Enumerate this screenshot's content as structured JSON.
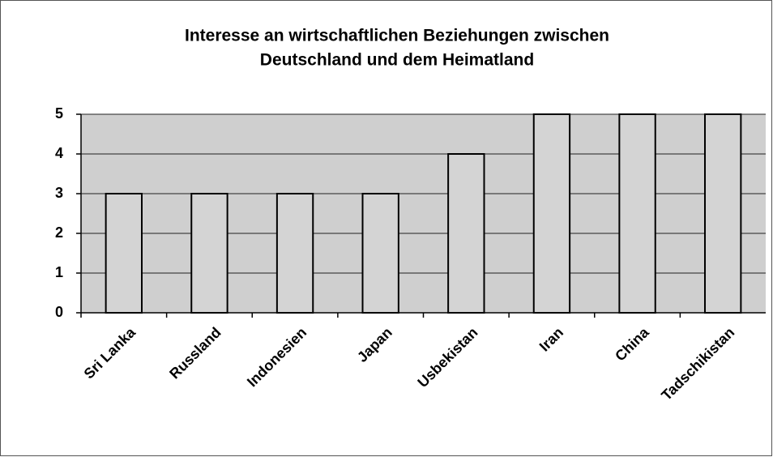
{
  "chart_data": {
    "type": "bar",
    "title": [
      "Interesse an wirtschaftlichen Beziehungen zwischen",
      "Deutschland und dem Heimatland"
    ],
    "categories": [
      "Sri Lanka",
      "Russland",
      "Indonesien",
      "Japan",
      "Usbekistan",
      "Iran",
      "China",
      "Tadschikistan"
    ],
    "values": [
      3,
      3,
      3,
      3,
      4,
      5,
      5,
      5
    ],
    "color": "#d4d4d4",
    "ylim": [
      0,
      5
    ],
    "yticks": [
      0,
      1,
      2,
      3,
      4,
      5
    ],
    "grid": true
  }
}
